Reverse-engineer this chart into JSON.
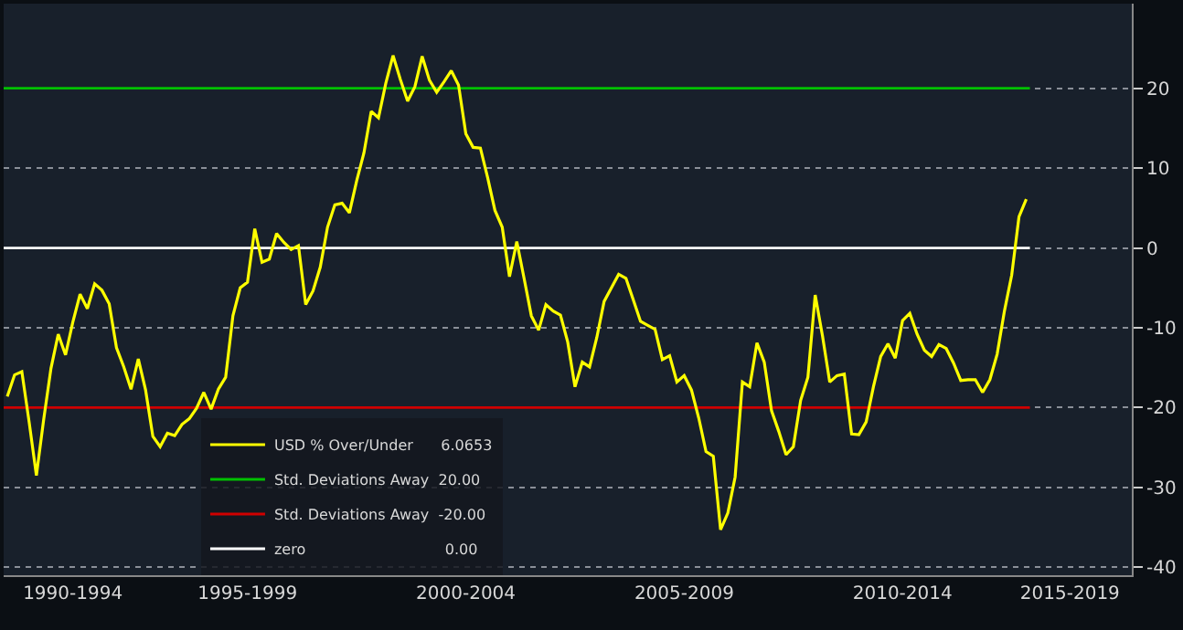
{
  "chart_data": {
    "type": "line",
    "categories": [
      null,
      null,
      null,
      null,
      null,
      null,
      null,
      null,
      null,
      "1990-1994",
      null,
      null,
      null,
      null,
      null,
      null,
      null,
      null,
      null,
      null,
      null,
      null,
      null,
      null,
      null,
      null,
      null,
      null,
      null,
      null,
      null,
      null,
      null,
      "1995-1999",
      null,
      null,
      null,
      null,
      null,
      null,
      null,
      null,
      null,
      null,
      null,
      null,
      null,
      null,
      null,
      null,
      null,
      null,
      null,
      null,
      null,
      null,
      null,
      null,
      null,
      null,
      null,
      null,
      null,
      "2000-2004",
      null,
      null,
      null,
      null,
      null,
      null,
      null,
      null,
      null,
      null,
      null,
      null,
      null,
      null,
      null,
      null,
      null,
      null,
      null,
      null,
      null,
      null,
      null,
      null,
      null,
      null,
      null,
      null,
      null,
      "2005-2009",
      null,
      null,
      null,
      null,
      null,
      null,
      null,
      null,
      null,
      null,
      null,
      null,
      null,
      null,
      null,
      null,
      null,
      null,
      null,
      null,
      null,
      null,
      null,
      null,
      null,
      null,
      null,
      null,
      null,
      "2010-2014",
      null,
      null,
      null,
      null,
      null,
      null,
      null,
      null,
      null,
      null,
      null,
      null,
      null,
      null,
      null,
      null,
      null,
      null,
      null,
      null,
      null,
      null,
      "2015-2019",
      null,
      null,
      null,
      null,
      null,
      null,
      null,
      null
    ],
    "series": [
      {
        "name": "USD % Over/Under      6.0653",
        "color": "#ffff00",
        "values": [
          -18.6,
          -15.9,
          -15.5,
          -21.8,
          -28.5,
          -21.5,
          -15.1,
          -10.8,
          -13.4,
          -9.3,
          -5.8,
          -7.6,
          -4.5,
          -5.3,
          -7.0,
          -12.5,
          -14.9,
          -17.7,
          -13.9,
          -17.8,
          -23.6,
          -24.9,
          -23.2,
          -23.5,
          -22.1,
          -21.4,
          -20.1,
          -18.1,
          -20.2,
          -17.7,
          -16.2,
          -8.5,
          -5.0,
          -4.3,
          2.4,
          -1.8,
          -1.4,
          1.8,
          0.7,
          -0.2,
          0.3,
          -7.1,
          -5.4,
          -2.4,
          2.6,
          5.4,
          5.6,
          4.4,
          8.4,
          11.9,
          17.1,
          16.3,
          20.6,
          24.1,
          21.1,
          18.4,
          20.2,
          24.0,
          21.0,
          19.5,
          20.8,
          22.2,
          20.4,
          14.3,
          12.6,
          12.5,
          8.8,
          4.7,
          2.6,
          -3.6,
          0.8,
          -3.8,
          -8.5,
          -10.3,
          -7.1,
          -7.9,
          -8.4,
          -11.8,
          -17.4,
          -14.3,
          -14.9,
          -11.2,
          -6.7,
          -5.0,
          -3.3,
          -3.8,
          -6.5,
          -9.2,
          -9.7,
          -10.2,
          -14.0,
          -13.5,
          -16.8,
          -16.0,
          -17.8,
          -21.3,
          -25.5,
          -26.1,
          -35.3,
          -33.2,
          -28.7,
          -16.8,
          -17.4,
          -11.9,
          -14.3,
          -20.4,
          -23.0,
          -25.9,
          -24.9,
          -19.1,
          -16.2,
          -5.9,
          -11.0,
          -16.8,
          -16.0,
          -15.8,
          -23.3,
          -23.4,
          -21.8,
          -17.4,
          -13.6,
          -12.0,
          -13.8,
          -9.1,
          -8.2,
          -10.8,
          -12.8,
          -13.6,
          -12.1,
          -12.6,
          -14.4,
          -16.6,
          -16.5,
          -16.5,
          -18.1,
          -16.5,
          -13.3,
          -7.9,
          -3.4,
          3.9,
          6.1,
          null,
          null,
          null,
          null,
          null,
          null,
          null,
          null,
          null,
          null,
          null,
          null,
          null,
          null
        ]
      }
    ],
    "ref_lines": [
      {
        "axis": "y",
        "value": 20,
        "label": "Std. Deviations Away  20.00",
        "color": "#00c000"
      },
      {
        "axis": "y",
        "value": -20,
        "label": "Std. Deviations Away  -20.00",
        "color": "#d00000"
      },
      {
        "axis": "y",
        "value": 0,
        "label": "zero                              0.00",
        "color": "#ffffff"
      }
    ],
    "ylim": [
      -41,
      30.6
    ],
    "yticks": [
      -40,
      -30,
      -20,
      -10,
      0,
      10,
      20
    ],
    "grid": "y",
    "legend": "bottom left"
  }
}
